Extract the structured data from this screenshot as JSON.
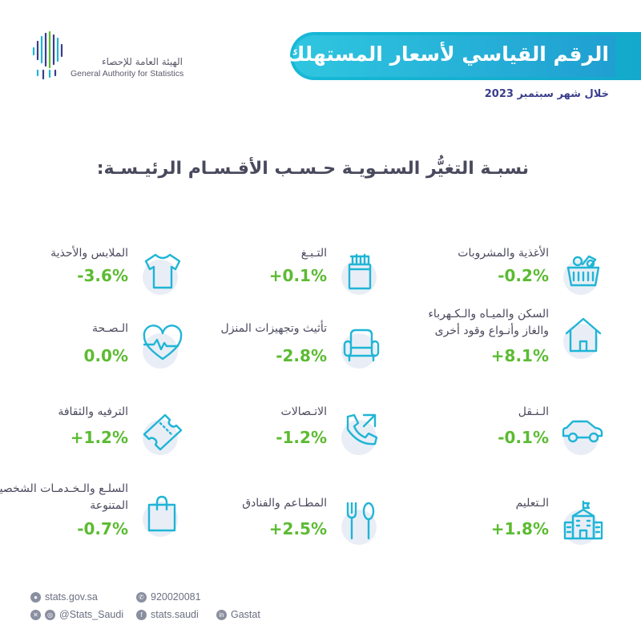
{
  "logo": {
    "name_ar": "الهيئة العامة للإحصاء",
    "name_en": "General Authority for Statistics"
  },
  "header": {
    "title": "الرقم القياسي لأسعار المستهلك",
    "subtitle": "خلال شهر سبتمبر 2023"
  },
  "section_title": "نسبـة التغيُّر السنـويـة حـسـب الأقـسـام الرئيـسـة:",
  "categories": [
    {
      "label": "الأغذية والمشروبات",
      "value": "-0.2%",
      "icon": "food-basket-icon"
    },
    {
      "label": "التـبـغ",
      "value": "+0.1%",
      "icon": "cigarette-pack-icon"
    },
    {
      "label": "الملابس والأحذية",
      "value": "-3.6%",
      "icon": "tshirt-icon"
    },
    {
      "label": "السكن والميـاه والـكـهرباء والغاز وأنـواع وقود أخرى",
      "value": "+8.1%",
      "icon": "house-icon"
    },
    {
      "label": "تأثيث وتجهيزات المنزل",
      "value": "-2.8%",
      "icon": "armchair-icon"
    },
    {
      "label": "الـصـحة",
      "value": "0.0%",
      "icon": "heartbeat-icon"
    },
    {
      "label": "الـنـقل",
      "value": "-0.1%",
      "icon": "car-icon"
    },
    {
      "label": "الاتـصالات",
      "value": "-1.2%",
      "icon": "phone-call-icon"
    },
    {
      "label": "الترفيه والثقافة",
      "value": "+1.2%",
      "icon": "ticket-icon"
    },
    {
      "label": "الـتعليم",
      "value": "+1.8%",
      "icon": "school-building-icon"
    },
    {
      "label": "المطـاعم والفنادق",
      "value": "+2.5%",
      "icon": "fork-spoon-icon"
    },
    {
      "label": "السلـع والـخـدمـات الشخصية المتنوعة",
      "value": "-0.7%",
      "icon": "shopping-bag-icon"
    }
  ],
  "footer": {
    "website": "stats.gov.sa",
    "phone": "920020081",
    "social_x_instagram": "@Stats_Saudi",
    "facebook": "stats.saudi",
    "linkedin": "Gastat"
  },
  "colors": {
    "accent": "#1fb5d6",
    "value_green": "#5cbb32",
    "title_navy": "#3a3e8c"
  }
}
